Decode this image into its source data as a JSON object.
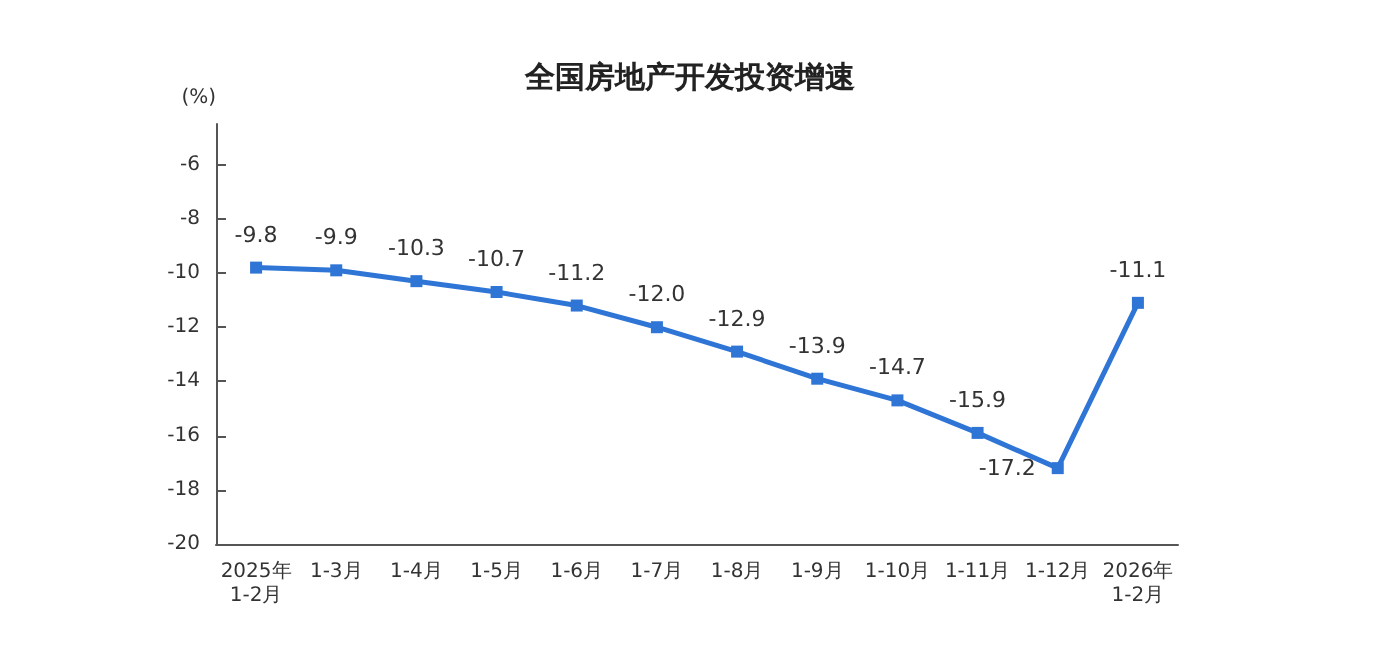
{
  "chart_data": {
    "type": "line",
    "title": "全国房地产开发投资增速",
    "ylabel": "(%)",
    "categories": [
      "2025年\n1-2月",
      "1-3月",
      "1-4月",
      "1-5月",
      "1-6月",
      "1-7月",
      "1-8月",
      "1-9月",
      "1-10月",
      "1-11月",
      "1-12月",
      "2026年\n1-2月"
    ],
    "series": [
      {
        "color": "#2e75d6",
        "values": [
          -9.8,
          -9.9,
          -10.3,
          -10.7,
          -11.2,
          -12.0,
          -12.9,
          -13.9,
          -14.7,
          -15.9,
          -17.2,
          -11.1
        ],
        "value_labels": [
          "-9.8",
          "-9.9",
          "-10.3",
          "-10.7",
          "-11.2",
          "-12.0",
          "-12.9",
          "-13.9",
          "-14.7",
          "-15.9",
          "-17.2",
          "-11.1"
        ]
      }
    ],
    "ylim": [
      -20,
      -4.5
    ],
    "yticks": [
      -20,
      -18,
      -16,
      -14,
      -12,
      -10,
      -8,
      -6
    ],
    "grid": false,
    "marker": "square",
    "line_style": "solid"
  }
}
